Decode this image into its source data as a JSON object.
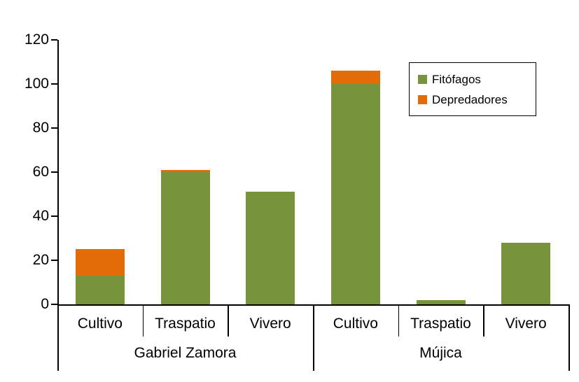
{
  "chart_data": {
    "type": "bar",
    "stacked": true,
    "title": "",
    "xlabel": "",
    "ylabel": "",
    "ylim": [
      0,
      120
    ],
    "yticks": [
      0,
      20,
      40,
      60,
      80,
      100,
      120
    ],
    "grid": false,
    "legend_position": "top-right",
    "groups": [
      {
        "label": "Gabriel Zamora",
        "span": [
          0,
          2
        ]
      },
      {
        "label": "Mújica",
        "span": [
          3,
          5
        ]
      }
    ],
    "categories": [
      "Cultivo",
      "Traspatio",
      "Vivero",
      "Cultivo",
      "Traspatio",
      "Vivero"
    ],
    "series": [
      {
        "name": "Fitófagos",
        "color": "#77933C",
        "values": [
          13,
          60,
          51,
          100,
          2,
          28
        ]
      },
      {
        "name": "Depredadores",
        "color": "#E36C09",
        "values": [
          12,
          1,
          0,
          6,
          0,
          0
        ]
      }
    ]
  }
}
